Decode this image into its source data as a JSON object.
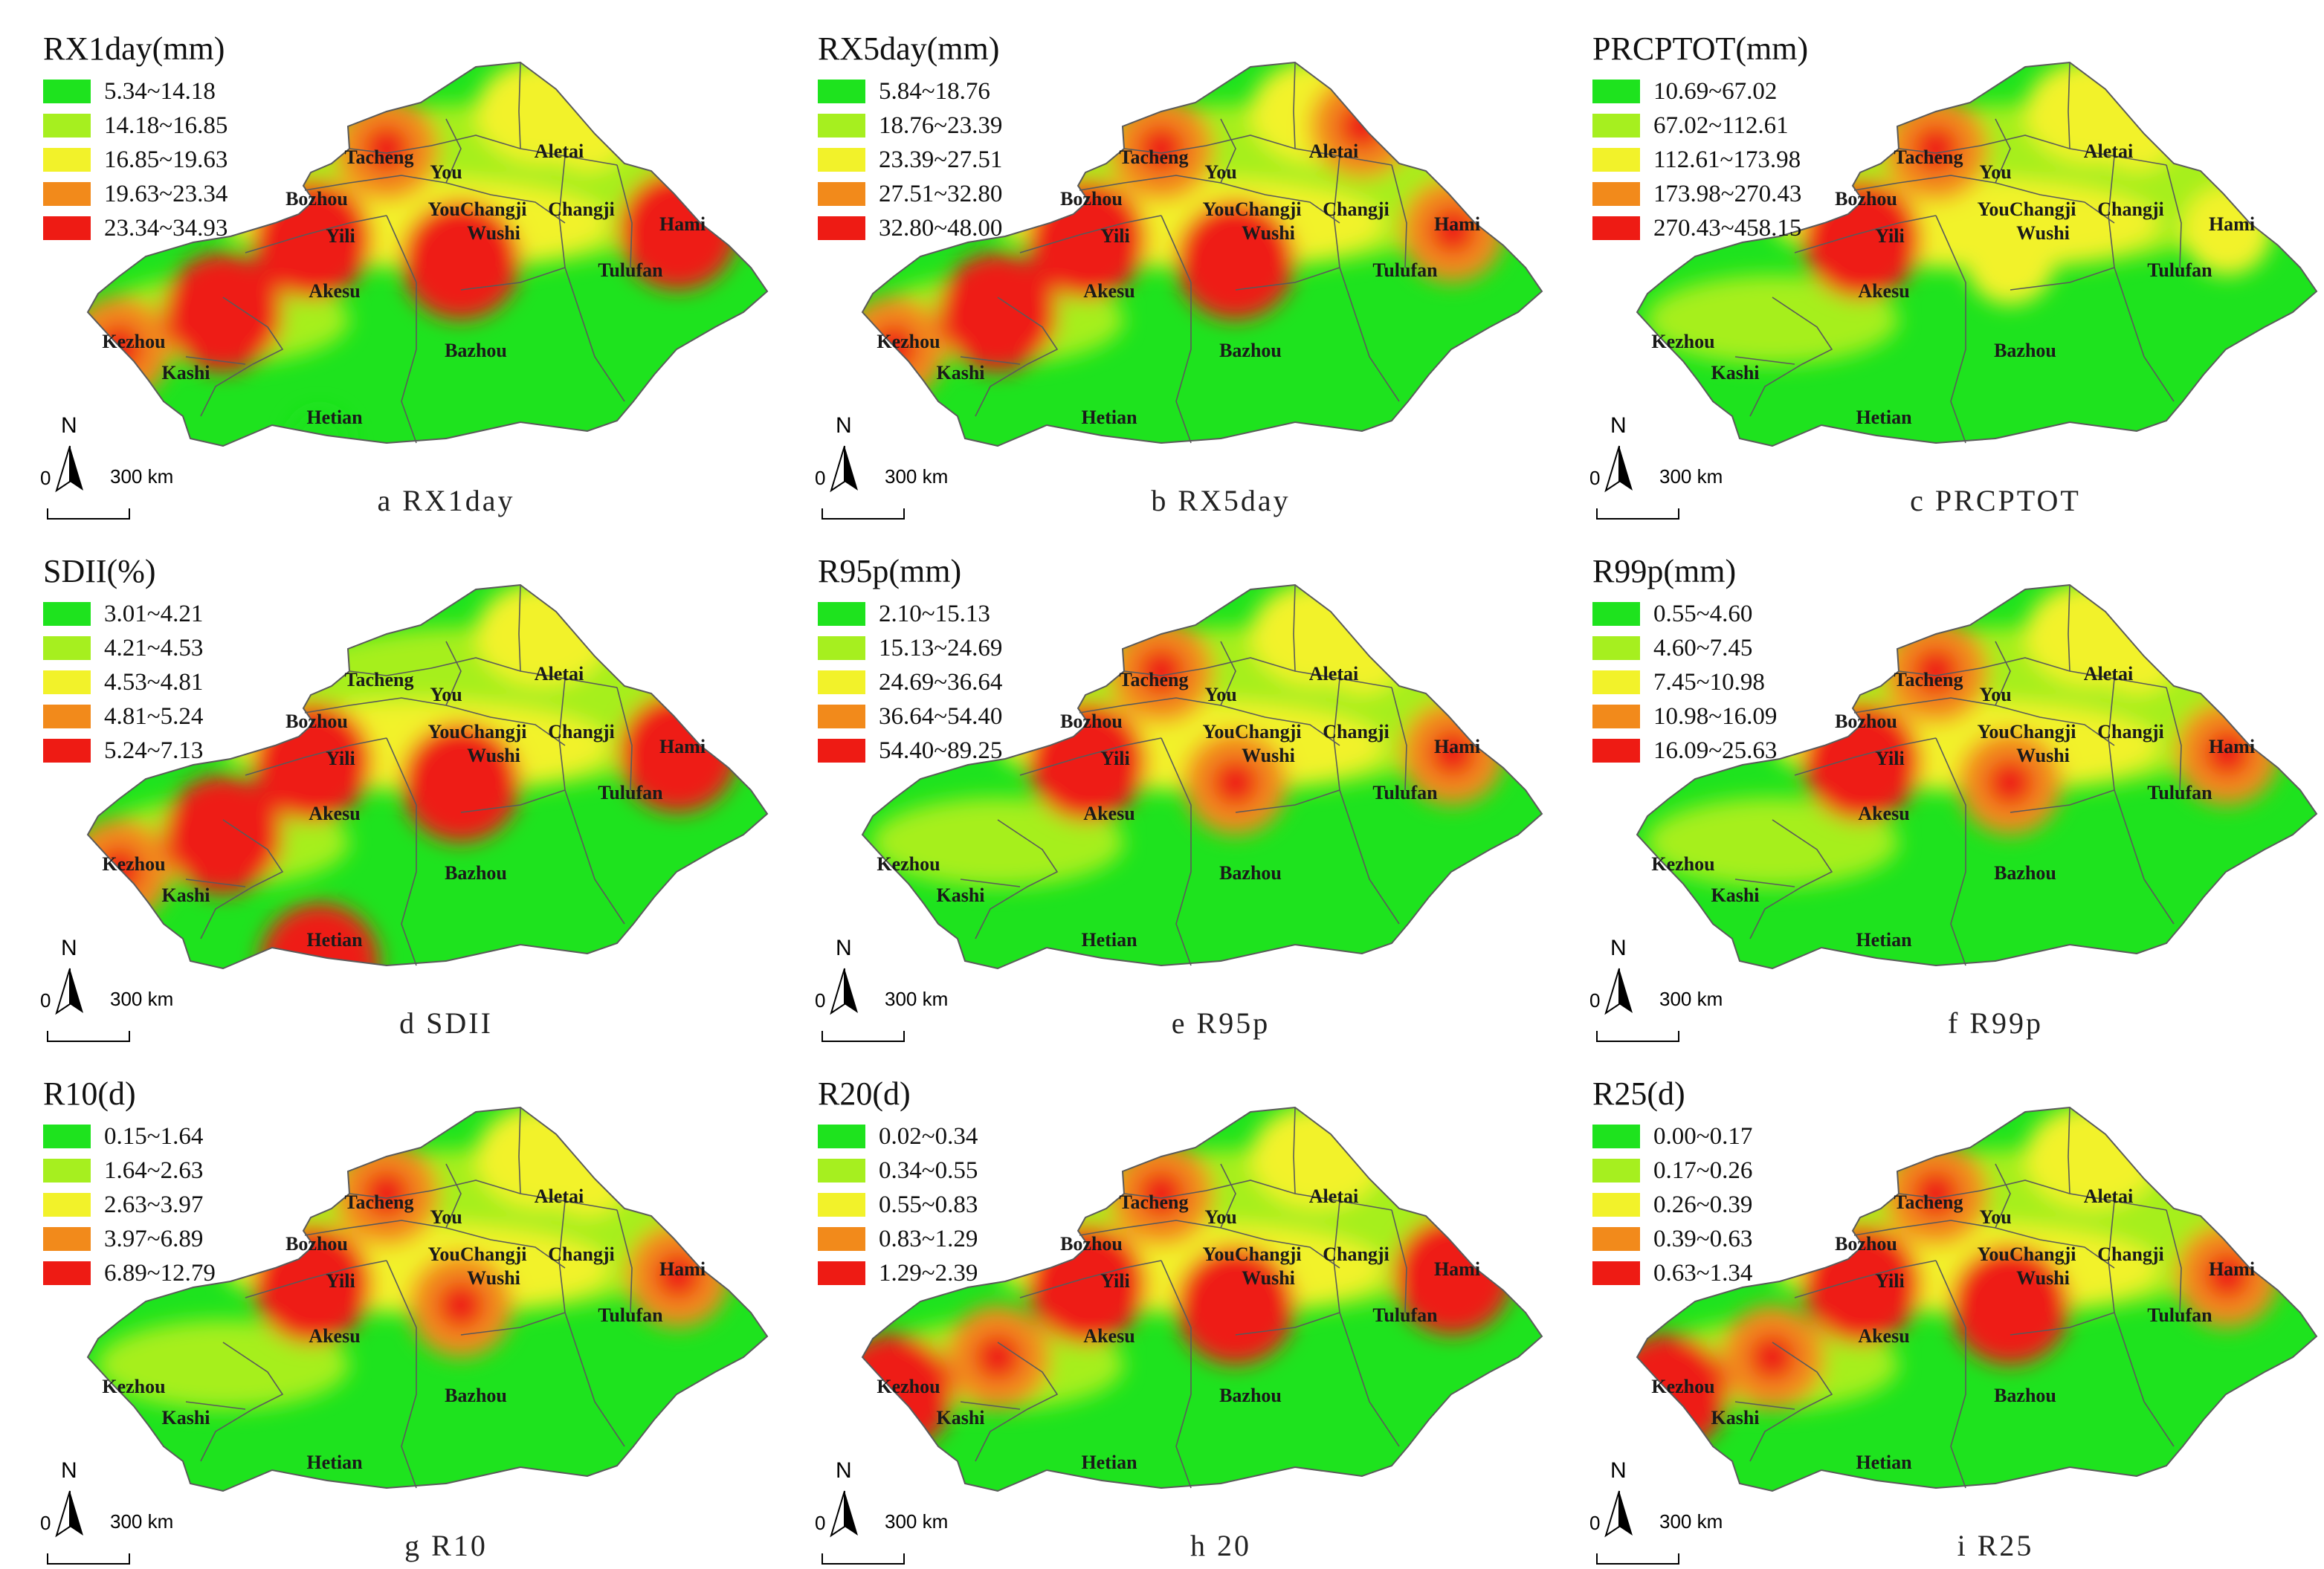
{
  "colors": {
    "class1": "#1ee31e",
    "class2": "#a6ef1f",
    "class3": "#f2f22a",
    "class4": "#f28a1b",
    "class5": "#ee1b14",
    "boundary": "#5a5a5a"
  },
  "icons": {
    "north_arrow": "north-arrow-icon",
    "scale_bar": "scale-bar-icon"
  },
  "shared": {
    "north": "N",
    "scale_zero": "0",
    "scale_label": "300 km",
    "regions": [
      "Aletai",
      "Tacheng",
      "You",
      "YouChangji",
      "Changji",
      "Bozhou",
      "Yili",
      "Wushi",
      "Hami",
      "Tulufan",
      "Akesu",
      "Kezhou",
      "Kashi",
      "Bazhou",
      "Hetian"
    ]
  },
  "panels": [
    {
      "title": "RX1day(mm)",
      "caption": "a  RX1day",
      "legend": [
        "5.34~14.18",
        "14.18~16.85",
        "16.85~19.63",
        "19.63~23.34",
        "23.34~34.93"
      ],
      "hotspots": [
        {
          "region": "Yili",
          "level": 5
        },
        {
          "region": "Wushi",
          "level": 5
        },
        {
          "region": "Hami",
          "level": 5
        },
        {
          "region": "Kezhou",
          "level": 4
        },
        {
          "region": "Akesu",
          "level": 5
        },
        {
          "region": "Tacheng",
          "level": 4
        },
        {
          "region": "Hetian",
          "level": 1
        },
        {
          "region": "Aletai",
          "level": 3
        }
      ]
    },
    {
      "title": "RX5day(mm)",
      "caption": "b  RX5day",
      "legend": [
        "5.84~18.76",
        "18.76~23.39",
        "23.39~27.51",
        "27.51~32.80",
        "32.80~48.00"
      ],
      "hotspots": [
        {
          "region": "Yili",
          "level": 5
        },
        {
          "region": "Wushi",
          "level": 5
        },
        {
          "region": "Hami",
          "level": 4
        },
        {
          "region": "Kezhou",
          "level": 4
        },
        {
          "region": "Akesu",
          "level": 5
        },
        {
          "region": "Tacheng",
          "level": 4
        },
        {
          "region": "Aletai",
          "level": 4
        }
      ]
    },
    {
      "title": "PRCPTOT(mm)",
      "caption": "c  PRCPTOT",
      "legend": [
        "10.69~67.02",
        "67.02~112.61",
        "112.61~173.98",
        "173.98~270.43",
        "270.43~458.15"
      ],
      "hotspots": [
        {
          "region": "Yili",
          "level": 5
        },
        {
          "region": "Tacheng",
          "level": 4
        },
        {
          "region": "Wushi",
          "level": 3
        },
        {
          "region": "Hami",
          "level": 3
        },
        {
          "region": "Aletai",
          "level": 3
        }
      ]
    },
    {
      "title": "SDII(%)",
      "caption": "d  SDII",
      "legend": [
        "3.01~4.21",
        "4.21~4.53",
        "4.53~4.81",
        "4.81~5.24",
        "5.24~7.13"
      ],
      "hotspots": [
        {
          "region": "Wushi",
          "level": 5
        },
        {
          "region": "Hetian",
          "level": 5
        },
        {
          "region": "Hami",
          "level": 5
        },
        {
          "region": "Yili",
          "level": 5
        },
        {
          "region": "Akesu",
          "level": 5
        },
        {
          "region": "Kezhou",
          "level": 4
        }
      ]
    },
    {
      "title": "R95p(mm)",
      "caption": "e  R95p",
      "legend": [
        "2.10~15.13",
        "15.13~24.69",
        "24.69~36.64",
        "36.64~54.40",
        "54.40~89.25"
      ],
      "hotspots": [
        {
          "region": "Yili",
          "level": 5
        },
        {
          "region": "Tacheng",
          "level": 4
        },
        {
          "region": "Wushi",
          "level": 4
        },
        {
          "region": "Hami",
          "level": 4
        },
        {
          "region": "Aletai",
          "level": 3
        }
      ]
    },
    {
      "title": "R99p(mm)",
      "caption": "f  R99p",
      "legend": [
        "0.55~4.60",
        "4.60~7.45",
        "7.45~10.98",
        "10.98~16.09",
        "16.09~25.63"
      ],
      "hotspots": [
        {
          "region": "Yili",
          "level": 5
        },
        {
          "region": "Tacheng",
          "level": 4
        },
        {
          "region": "Wushi",
          "level": 4
        },
        {
          "region": "Hami",
          "level": 4
        },
        {
          "region": "Aletai",
          "level": 3
        }
      ]
    },
    {
      "title": "R10(d)",
      "caption": "g  R10",
      "legend": [
        "0.15~1.64",
        "1.64~2.63",
        "2.63~3.97",
        "3.97~6.89",
        "6.89~12.79"
      ],
      "hotspots": [
        {
          "region": "Yili",
          "level": 5
        },
        {
          "region": "Tacheng",
          "level": 4
        },
        {
          "region": "Wushi",
          "level": 4
        },
        {
          "region": "Hami",
          "level": 4
        },
        {
          "region": "Aletai",
          "level": 3
        }
      ]
    },
    {
      "title": "R20(d)",
      "caption": "h  20",
      "legend": [
        "0.02~0.34",
        "0.34~0.55",
        "0.55~0.83",
        "0.83~1.29",
        "1.29~2.39"
      ],
      "hotspots": [
        {
          "region": "Yili",
          "level": 5
        },
        {
          "region": "Wushi",
          "level": 5
        },
        {
          "region": "Hami",
          "level": 5
        },
        {
          "region": "Kezhou",
          "level": 5
        },
        {
          "region": "Akesu",
          "level": 4
        },
        {
          "region": "Tacheng",
          "level": 4
        }
      ]
    },
    {
      "title": "R25(d)",
      "caption": "i  R25",
      "legend": [
        "0.00~0.17",
        "0.17~0.26",
        "0.26~0.39",
        "0.39~0.63",
        "0.63~1.34"
      ],
      "hotspots": [
        {
          "region": "Wushi",
          "level": 5
        },
        {
          "region": "Yili",
          "level": 5
        },
        {
          "region": "Kezhou",
          "level": 5
        },
        {
          "region": "Hami",
          "level": 4
        },
        {
          "region": "Akesu",
          "level": 4
        },
        {
          "region": "Tacheng",
          "level": 4
        }
      ]
    }
  ]
}
